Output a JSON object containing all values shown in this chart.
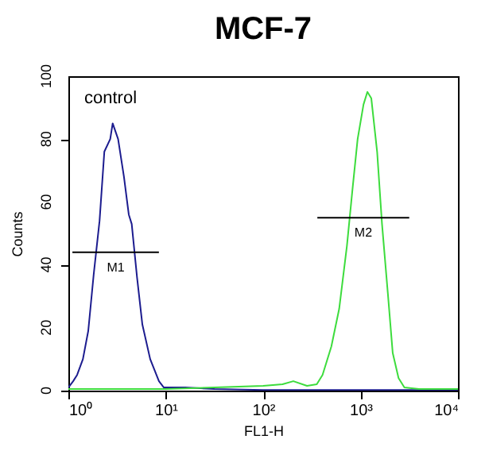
{
  "chart_data": {
    "type": "line",
    "title": "MCF-7",
    "xlabel": "FL1-H",
    "ylabel": "Counts",
    "log": "x",
    "xlim": [
      1,
      10000
    ],
    "ylim": [
      0,
      100
    ],
    "xticks": [
      {
        "value": 1,
        "label": "10⁰"
      },
      {
        "value": 10,
        "label": "10¹"
      },
      {
        "value": 100,
        "label": "10²"
      },
      {
        "value": 1000,
        "label": "10³"
      },
      {
        "value": 10000,
        "label": "10⁴"
      }
    ],
    "yticks": [
      0,
      20,
      40,
      60,
      80,
      100
    ],
    "grid": false,
    "marker": "none",
    "line_style": "solid",
    "series": [
      {
        "name": "control",
        "color": "#1c1c8f",
        "x": [
          1,
          1.12,
          1.23,
          1.41,
          1.6,
          1.82,
          2.09,
          2.34,
          2.69,
          2.85,
          3.24,
          3.72,
          4.17,
          4.47,
          5.07,
          5.75,
          6.92,
          8.51,
          9.55,
          15.8,
          31.6,
          100,
          316,
          1000,
          3162,
          10000
        ],
        "values": [
          1,
          3,
          5,
          10,
          19,
          37,
          54,
          76,
          80,
          85,
          80,
          68,
          56,
          53,
          36,
          21,
          10,
          3,
          1,
          1,
          0.5,
          0.2,
          0.2,
          0.2,
          0.2,
          0.2
        ]
      },
      {
        "color": "#3ddc3d",
        "x": [
          1,
          10,
          31.6,
          100,
          158,
          204,
          282,
          355,
          407,
          501,
          603,
          724,
          832,
          933,
          1072,
          1175,
          1288,
          1479,
          1660,
          1905,
          2138,
          2455,
          2818,
          3981,
          10000
        ],
        "values": [
          0.5,
          0.5,
          1,
          1.5,
          2,
          3,
          1.5,
          2,
          5,
          14,
          26,
          46,
          65,
          80,
          91,
          95,
          93,
          76,
          53,
          31,
          12,
          4,
          1,
          0.5,
          0.5
        ]
      },
      {
        "type": "line",
        "color": "#000000",
        "x": [
          1.1,
          8.5
        ],
        "values": [
          44,
          44
        ]
      },
      {
        "type": "line",
        "color": "#000000",
        "x": [
          360,
          3160
        ],
        "values": [
          55,
          55
        ]
      }
    ],
    "annotations": [
      {
        "text": "M1",
        "x": 3.06,
        "y": 44
      },
      {
        "text": "M2",
        "x": 1067,
        "y": 55
      }
    ]
  }
}
